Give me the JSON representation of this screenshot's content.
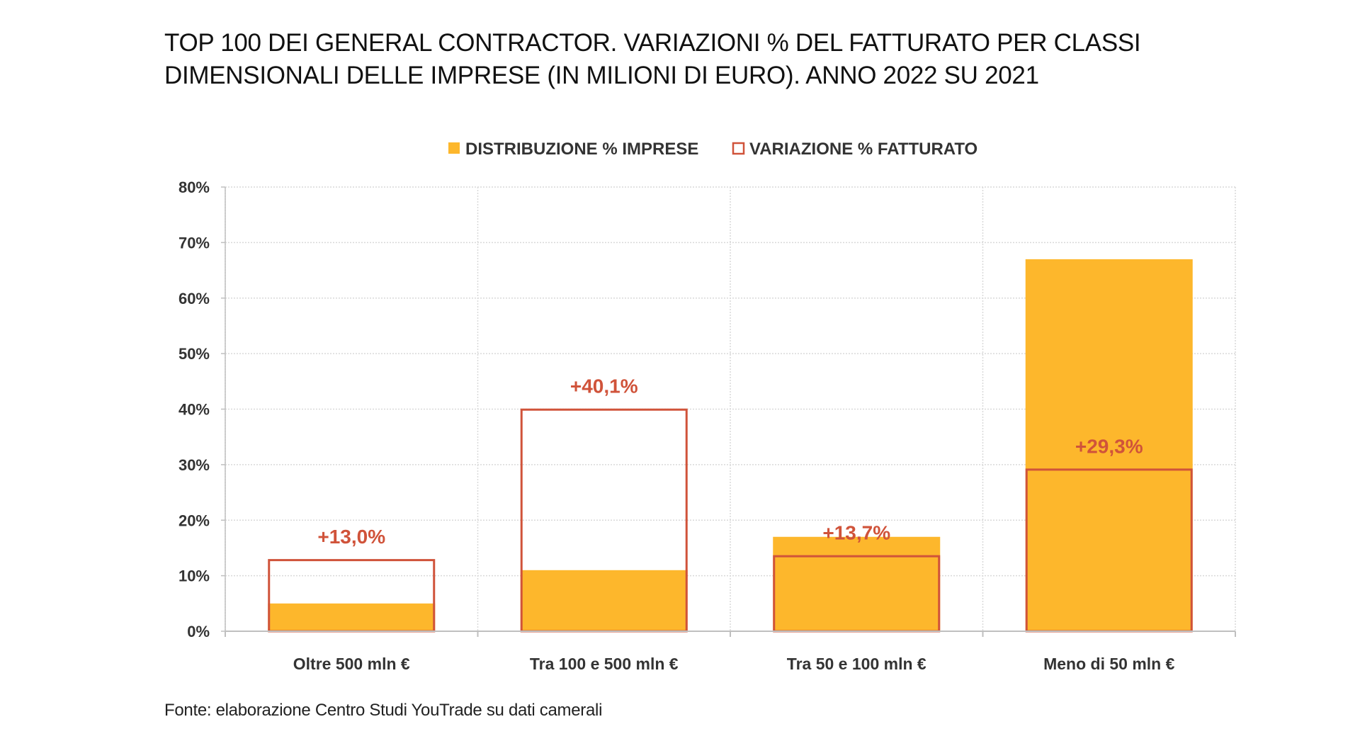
{
  "title_lines": [
    "TOP 100 DEI GENERAL CONTRACTOR. VARIAZIONI % DEL FATTURATO PER CLASSI",
    "DIMENSIONALI DELLE IMPRESE (IN MILIONI DI EURO). ANNO 2022 SU 2021"
  ],
  "source": "Fonte: elaborazione Centro Studi YouTrade su dati camerali",
  "colors": {
    "distribution": "#FDB72C",
    "variation_stroke": "#D0533A",
    "variation_label": "#D0533A",
    "grid": "#D9D9D9",
    "axis": "#BFBFBF",
    "text": "#333333"
  },
  "chart_data": {
    "type": "bar",
    "title": "",
    "xlabel": "",
    "ylabel": "",
    "ylim": [
      0,
      80
    ],
    "yticks": [
      0,
      10,
      20,
      30,
      40,
      50,
      60,
      70,
      80
    ],
    "ytick_labels": [
      "0%",
      "10%",
      "20%",
      "30%",
      "40%",
      "50%",
      "60%",
      "70%",
      "80%"
    ],
    "grid": true,
    "legend_position": "top",
    "categories": [
      "Oltre 500 mln €",
      "Tra 100 e 500 mln €",
      "Tra 50 e 100 mln €",
      "Meno di 50 mln €"
    ],
    "series": [
      {
        "name": "DISTRIBUZIONE % IMPRESE",
        "style": "filled",
        "values": [
          5,
          11,
          17,
          67
        ]
      },
      {
        "name": "VARIAZIONE % FATTURATO",
        "style": "outline",
        "values": [
          13.0,
          40.1,
          13.7,
          29.3
        ],
        "data_labels": [
          "+13,0%",
          "+40,1%",
          "+13,7%",
          "+29,3%"
        ]
      }
    ]
  }
}
